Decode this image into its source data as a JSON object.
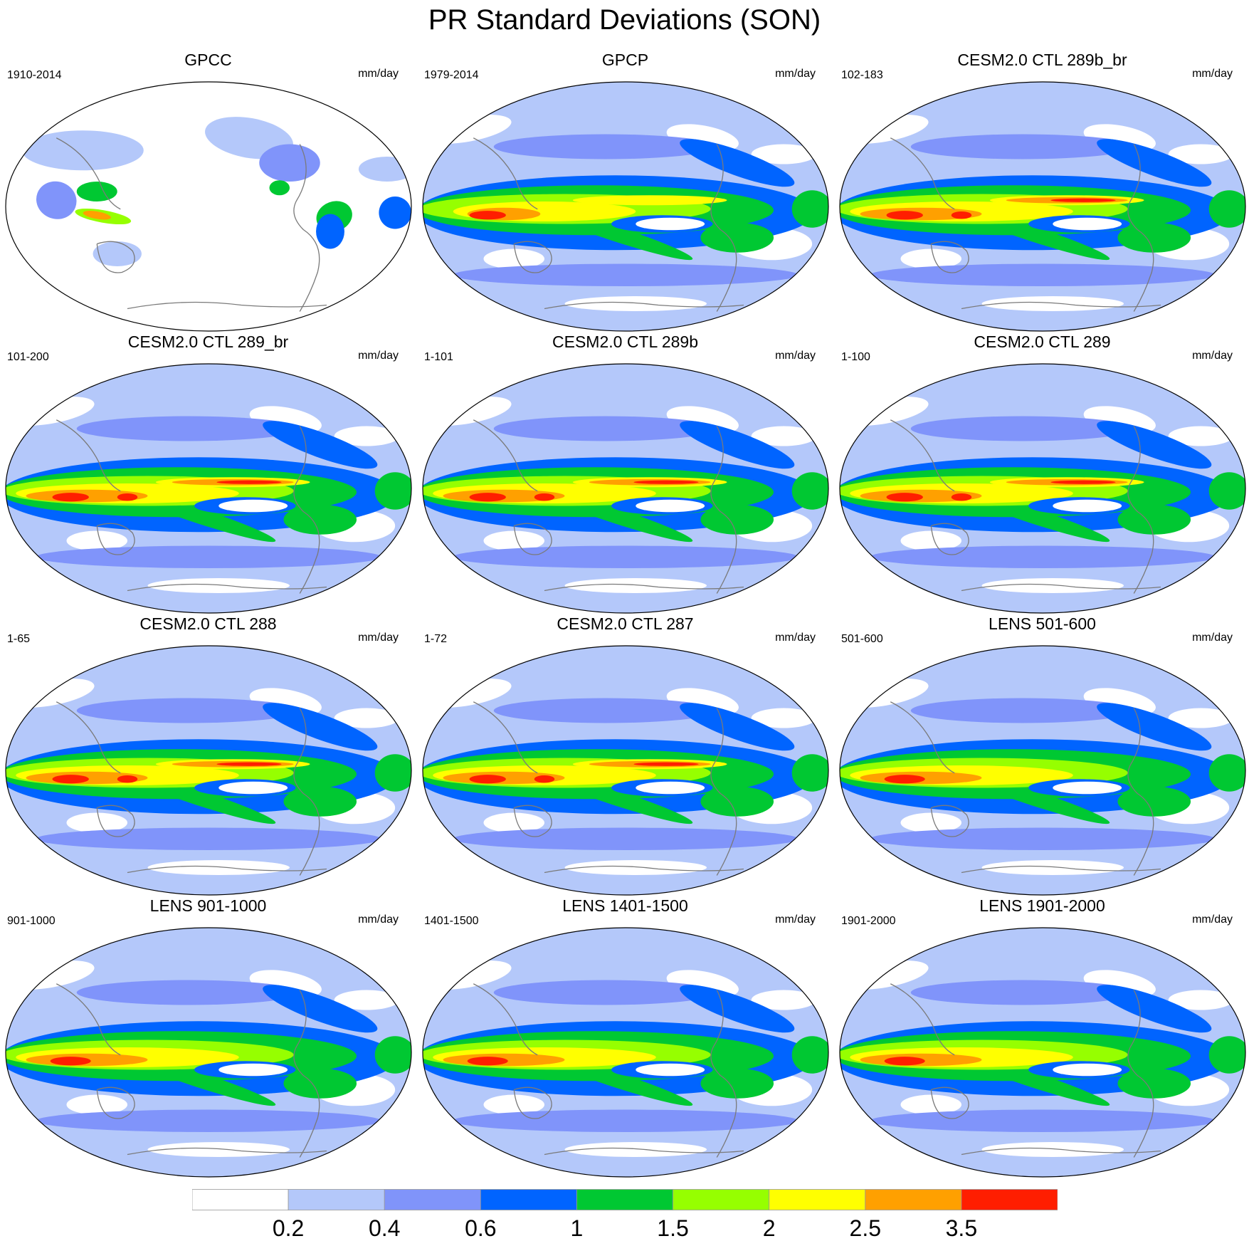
{
  "title": "PR Standard Deviations (SON)",
  "panels": [
    {
      "title": "GPCC",
      "period": "1910-2014",
      "units": "mm/day",
      "kind": "obs_land"
    },
    {
      "title": "GPCP",
      "period": "1979-2014",
      "units": "mm/day",
      "kind": "obs"
    },
    {
      "title": "CESM2.0 CTL 289b_br",
      "period": "102-183",
      "units": "mm/day",
      "kind": "model"
    },
    {
      "title": "CESM2.0 CTL 289_br",
      "period": "101-200",
      "units": "mm/day",
      "kind": "model"
    },
    {
      "title": "CESM2.0 CTL 289b",
      "period": "1-101",
      "units": "mm/day",
      "kind": "model"
    },
    {
      "title": "CESM2.0 CTL 289",
      "period": "1-100",
      "units": "mm/day",
      "kind": "model"
    },
    {
      "title": "CESM2.0 CTL 288",
      "period": "1-65",
      "units": "mm/day",
      "kind": "model"
    },
    {
      "title": "CESM2.0 CTL 287",
      "period": "1-72",
      "units": "mm/day",
      "kind": "model"
    },
    {
      "title": "LENS 501-600",
      "period": "501-600",
      "units": "mm/day",
      "kind": "lens"
    },
    {
      "title": "LENS 901-1000",
      "period": "901-1000",
      "units": "mm/day",
      "kind": "lens"
    },
    {
      "title": "LENS 1401-1500",
      "period": "1401-1500",
      "units": "mm/day",
      "kind": "lens"
    },
    {
      "title": "LENS 1901-2000",
      "period": "1901-2000",
      "units": "mm/day",
      "kind": "lens"
    }
  ],
  "colorbar": {
    "levels": [
      "0.2",
      "0.4",
      "0.6",
      "1",
      "1.5",
      "2",
      "2.5",
      "3.5"
    ],
    "colors": [
      "#ffffff",
      "#b4c8fa",
      "#8094fa",
      "#0064ff",
      "#00c832",
      "#96ff00",
      "#ffff00",
      "#ffa000",
      "#ff1e00"
    ]
  }
}
